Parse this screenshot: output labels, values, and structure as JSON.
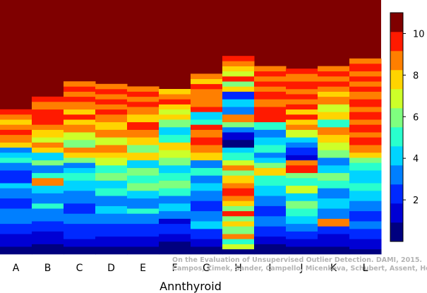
{
  "chart_data": {
    "type": "heatmap",
    "xlabel": "Annthyroid",
    "categories": [
      "A",
      "B",
      "C",
      "D",
      "E",
      "F",
      "G",
      "H",
      "I",
      "J",
      "K",
      "L"
    ],
    "colorbar": {
      "min": 0,
      "max": 11,
      "ticks": [
        2,
        4,
        6,
        8,
        10
      ],
      "tick_labels": [
        "2",
        "4",
        "6",
        "8",
        "10"
      ],
      "levels": 11,
      "colors": [
        "#00007f",
        "#0000d4",
        "#0029ff",
        "#007fff",
        "#00d4ff",
        "#29ffcd",
        "#7fff7f",
        "#cdff29",
        "#ffd400",
        "#ff7f00",
        "#ff1a00",
        "#7f0000"
      ]
    },
    "y_rows": 100,
    "column_background_value": 11,
    "columns": [
      {
        "name": "A",
        "bands": [
          [
            0,
            0
          ],
          [
            3,
            1
          ],
          [
            8,
            2
          ],
          [
            12,
            3
          ],
          [
            18,
            2
          ],
          [
            22,
            3
          ],
          [
            26,
            4
          ],
          [
            28,
            2
          ],
          [
            33,
            3
          ],
          [
            36,
            5
          ],
          [
            38,
            4
          ],
          [
            40,
            3
          ],
          [
            42,
            8
          ],
          [
            44,
            9
          ],
          [
            47,
            10
          ],
          [
            49,
            9
          ],
          [
            51,
            8
          ],
          [
            53,
            9
          ],
          [
            55,
            10
          ]
        ]
      },
      {
        "name": "B",
        "bands": [
          [
            0,
            0
          ],
          [
            4,
            1
          ],
          [
            9,
            2
          ],
          [
            13,
            3
          ],
          [
            18,
            5
          ],
          [
            20,
            3
          ],
          [
            24,
            4
          ],
          [
            27,
            9
          ],
          [
            30,
            5
          ],
          [
            32,
            3
          ],
          [
            35,
            6
          ],
          [
            37,
            4
          ],
          [
            40,
            8
          ],
          [
            42,
            9
          ],
          [
            44,
            7
          ],
          [
            46,
            8
          ],
          [
            49,
            9
          ],
          [
            51,
            10
          ],
          [
            57,
            9
          ],
          [
            60,
            10
          ]
        ]
      },
      {
        "name": "C",
        "bands": [
          [
            0,
            0
          ],
          [
            3,
            1
          ],
          [
            6,
            2
          ],
          [
            12,
            3
          ],
          [
            16,
            2
          ],
          [
            20,
            3
          ],
          [
            25,
            4
          ],
          [
            29,
            5
          ],
          [
            32,
            4
          ],
          [
            34,
            3
          ],
          [
            36,
            6
          ],
          [
            38,
            8
          ],
          [
            40,
            9
          ],
          [
            42,
            6
          ],
          [
            45,
            7
          ],
          [
            48,
            9
          ],
          [
            51,
            8
          ],
          [
            53,
            10
          ],
          [
            55,
            8
          ],
          [
            57,
            9
          ],
          [
            60,
            10
          ],
          [
            62,
            9
          ],
          [
            64,
            10
          ],
          [
            66,
            9
          ]
        ]
      },
      {
        "name": "D",
        "bands": [
          [
            0,
            0
          ],
          [
            3,
            1
          ],
          [
            7,
            2
          ],
          [
            12,
            3
          ],
          [
            16,
            4
          ],
          [
            19,
            3
          ],
          [
            23,
            5
          ],
          [
            26,
            4
          ],
          [
            29,
            6
          ],
          [
            32,
            5
          ],
          [
            35,
            7
          ],
          [
            38,
            8
          ],
          [
            40,
            9
          ],
          [
            43,
            7
          ],
          [
            46,
            9
          ],
          [
            49,
            8
          ],
          [
            52,
            9
          ],
          [
            55,
            10
          ],
          [
            57,
            9
          ],
          [
            59,
            10
          ],
          [
            61,
            9
          ],
          [
            63,
            10
          ],
          [
            65,
            9
          ]
        ]
      },
      {
        "name": "E",
        "bands": [
          [
            0,
            0
          ],
          [
            3,
            1
          ],
          [
            7,
            2
          ],
          [
            12,
            3
          ],
          [
            16,
            5
          ],
          [
            18,
            3
          ],
          [
            22,
            4
          ],
          [
            25,
            6
          ],
          [
            28,
            5
          ],
          [
            31,
            6
          ],
          [
            34,
            4
          ],
          [
            37,
            8
          ],
          [
            40,
            6
          ],
          [
            43,
            8
          ],
          [
            46,
            9
          ],
          [
            49,
            10
          ],
          [
            52,
            8
          ],
          [
            55,
            9
          ],
          [
            58,
            10
          ],
          [
            60,
            9
          ],
          [
            62,
            10
          ],
          [
            64,
            9
          ]
        ]
      },
      {
        "name": "F",
        "bands": [
          [
            0,
            0
          ],
          [
            5,
            1
          ],
          [
            8,
            2
          ],
          [
            12,
            1
          ],
          [
            14,
            3
          ],
          [
            17,
            4
          ],
          [
            20,
            3
          ],
          [
            23,
            5
          ],
          [
            26,
            6
          ],
          [
            29,
            5
          ],
          [
            32,
            4
          ],
          [
            35,
            6
          ],
          [
            38,
            7
          ],
          [
            41,
            8
          ],
          [
            44,
            5
          ],
          [
            47,
            4
          ],
          [
            50,
            6
          ],
          [
            53,
            8
          ],
          [
            55,
            7
          ],
          [
            57,
            8
          ],
          [
            59,
            10
          ],
          [
            61,
            9
          ],
          [
            63,
            8
          ]
        ]
      },
      {
        "name": "G",
        "bands": [
          [
            0,
            0
          ],
          [
            3,
            1
          ],
          [
            6,
            2
          ],
          [
            10,
            4
          ],
          [
            13,
            3
          ],
          [
            17,
            2
          ],
          [
            21,
            3
          ],
          [
            25,
            4
          ],
          [
            28,
            3
          ],
          [
            31,
            5
          ],
          [
            34,
            3
          ],
          [
            37,
            8
          ],
          [
            40,
            9
          ],
          [
            43,
            10
          ],
          [
            46,
            9
          ],
          [
            49,
            10
          ],
          [
            51,
            5
          ],
          [
            53,
            4
          ],
          [
            56,
            10
          ],
          [
            58,
            9
          ],
          [
            63,
            9
          ],
          [
            65,
            10
          ],
          [
            67,
            8
          ],
          [
            69,
            9
          ]
        ]
      },
      {
        "name": "H",
        "bands": [
          [
            0,
            0
          ],
          [
            2,
            7
          ],
          [
            4,
            5
          ],
          [
            6,
            9
          ],
          [
            8,
            6
          ],
          [
            11,
            8
          ],
          [
            13,
            6
          ],
          [
            15,
            10
          ],
          [
            17,
            6
          ],
          [
            19,
            8
          ],
          [
            21,
            9
          ],
          [
            23,
            10
          ],
          [
            26,
            9
          ],
          [
            28,
            8
          ],
          [
            31,
            6
          ],
          [
            33,
            9
          ],
          [
            35,
            7
          ],
          [
            37,
            5
          ],
          [
            40,
            4
          ],
          [
            42,
            0
          ],
          [
            45,
            1
          ],
          [
            48,
            3
          ],
          [
            50,
            6
          ],
          [
            52,
            9
          ],
          [
            55,
            3
          ],
          [
            58,
            4
          ],
          [
            61,
            2
          ],
          [
            64,
            8
          ],
          [
            66,
            6
          ],
          [
            68,
            10
          ],
          [
            70,
            7
          ],
          [
            72,
            8
          ],
          [
            74,
            9
          ],
          [
            76,
            10
          ]
        ]
      },
      {
        "name": "I",
        "bands": [
          [
            0,
            0
          ],
          [
            4,
            1
          ],
          [
            7,
            2
          ],
          [
            11,
            3
          ],
          [
            15,
            2
          ],
          [
            19,
            3
          ],
          [
            23,
            4
          ],
          [
            27,
            5
          ],
          [
            31,
            8
          ],
          [
            34,
            6
          ],
          [
            36,
            4
          ],
          [
            38,
            3
          ],
          [
            40,
            5
          ],
          [
            43,
            4
          ],
          [
            46,
            3
          ],
          [
            49,
            5
          ],
          [
            52,
            10
          ],
          [
            58,
            9
          ],
          [
            61,
            10
          ],
          [
            64,
            9
          ],
          [
            66,
            10
          ],
          [
            68,
            9
          ],
          [
            70,
            10
          ],
          [
            72,
            9
          ]
        ]
      },
      {
        "name": "J",
        "bands": [
          [
            0,
            0
          ],
          [
            3,
            1
          ],
          [
            6,
            2
          ],
          [
            9,
            3
          ],
          [
            12,
            4
          ],
          [
            15,
            5
          ],
          [
            18,
            6
          ],
          [
            21,
            4
          ],
          [
            24,
            7
          ],
          [
            27,
            5
          ],
          [
            30,
            6
          ],
          [
            32,
            10
          ],
          [
            35,
            9
          ],
          [
            37,
            1
          ],
          [
            39,
            2
          ],
          [
            42,
            3
          ],
          [
            44,
            4
          ],
          [
            46,
            7
          ],
          [
            49,
            9
          ],
          [
            51,
            8
          ],
          [
            53,
            10
          ],
          [
            55,
            8
          ],
          [
            57,
            10
          ],
          [
            59,
            9
          ],
          [
            61,
            10
          ],
          [
            63,
            9
          ],
          [
            65,
            10
          ],
          [
            68,
            9
          ],
          [
            71,
            10
          ]
        ]
      },
      {
        "name": "K",
        "bands": [
          [
            0,
            0
          ],
          [
            3,
            1
          ],
          [
            8,
            2
          ],
          [
            11,
            9
          ],
          [
            14,
            3
          ],
          [
            18,
            4
          ],
          [
            22,
            3
          ],
          [
            26,
            5
          ],
          [
            29,
            6
          ],
          [
            32,
            4
          ],
          [
            35,
            3
          ],
          [
            38,
            6
          ],
          [
            41,
            7
          ],
          [
            44,
            8
          ],
          [
            47,
            9
          ],
          [
            50,
            5
          ],
          [
            53,
            8
          ],
          [
            56,
            7
          ],
          [
            59,
            9
          ],
          [
            62,
            8
          ],
          [
            64,
            9
          ],
          [
            66,
            10
          ],
          [
            68,
            9
          ],
          [
            70,
            10
          ],
          [
            72,
            9
          ]
        ]
      },
      {
        "name": "L",
        "bands": [
          [
            0,
            0
          ],
          [
            2,
            1
          ],
          [
            6,
            2
          ],
          [
            10,
            3
          ],
          [
            13,
            2
          ],
          [
            17,
            3
          ],
          [
            21,
            4
          ],
          [
            25,
            5
          ],
          [
            28,
            4
          ],
          [
            33,
            5
          ],
          [
            36,
            6
          ],
          [
            38,
            8
          ],
          [
            40,
            9
          ],
          [
            43,
            10
          ],
          [
            46,
            9
          ],
          [
            48,
            10
          ],
          [
            51,
            9
          ],
          [
            53,
            10
          ],
          [
            56,
            9
          ],
          [
            58,
            10
          ],
          [
            61,
            9
          ],
          [
            64,
            10
          ],
          [
            66,
            9
          ],
          [
            68,
            10
          ],
          [
            70,
            9
          ],
          [
            72,
            10
          ],
          [
            75,
            9
          ]
        ]
      }
    ]
  },
  "credit": {
    "line1": "On the Evaluation of Unsupervised Outlier Detection. DAMI, 2015.",
    "line2": "Campos, Zimek, Sander, Campello, Micenkova, Schubert, Assent, Houle"
  }
}
